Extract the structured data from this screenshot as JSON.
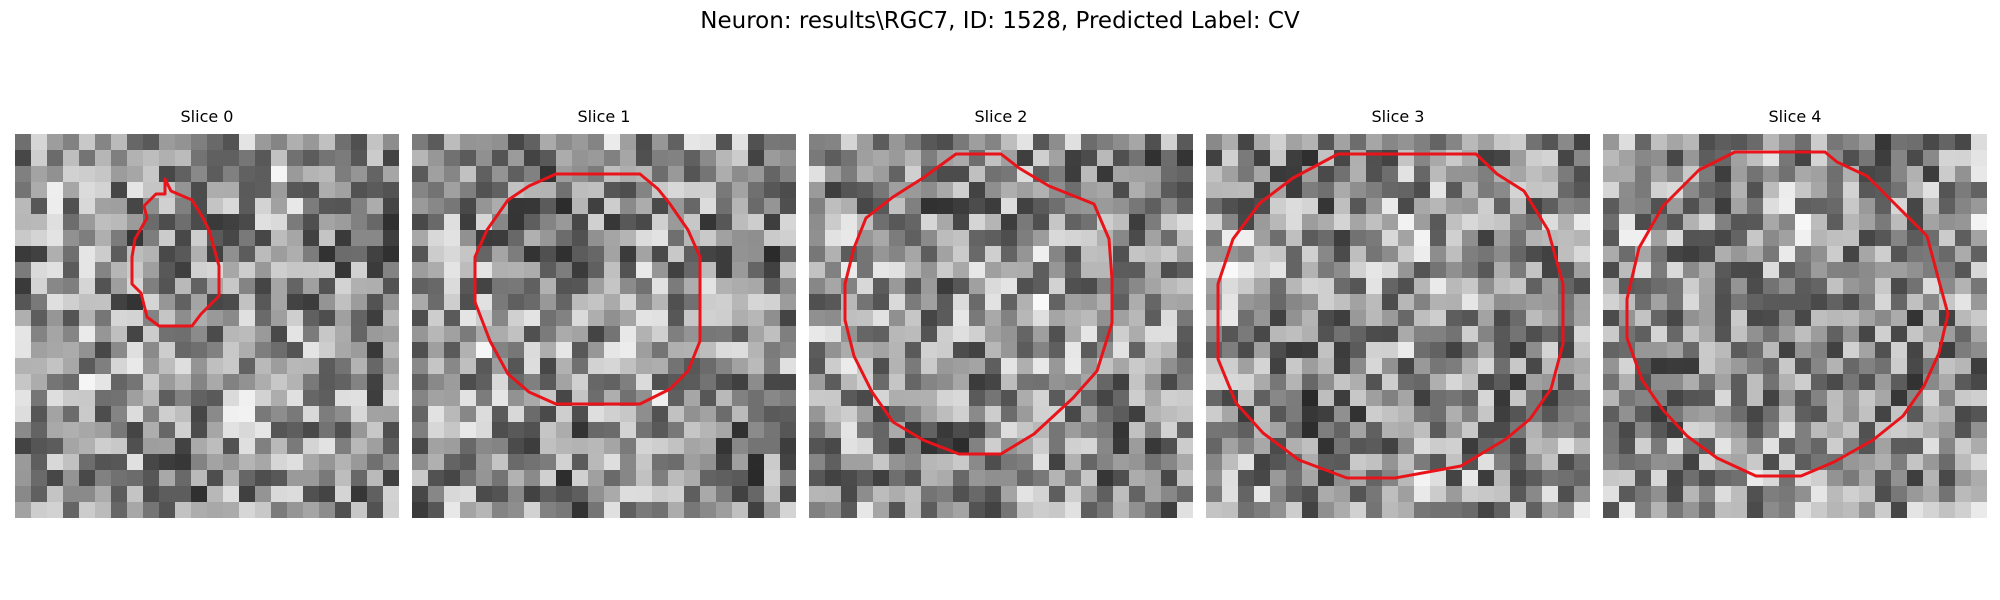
{
  "figure": {
    "title": "Neuron: results\\RGC7, ID: 1528, Predicted Label: CV"
  },
  "panels": [
    {
      "title": "Slice 0"
    },
    {
      "title": "Slice 1"
    },
    {
      "title": "Slice 2"
    },
    {
      "title": "Slice 3"
    },
    {
      "title": "Slice 4"
    }
  ],
  "colors": {
    "contour": "#e8141a"
  }
}
